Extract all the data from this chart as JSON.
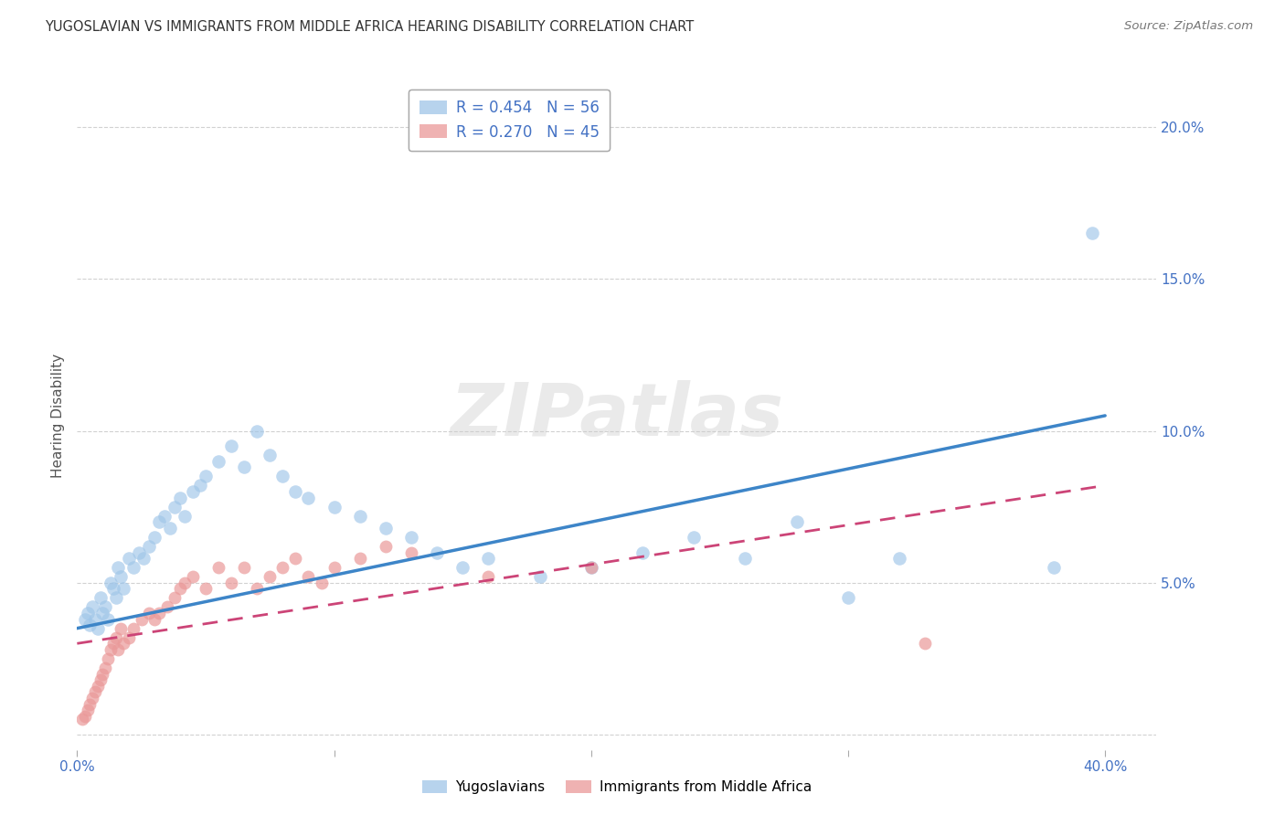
{
  "title": "YUGOSLAVIAN VS IMMIGRANTS FROM MIDDLE AFRICA HEARING DISABILITY CORRELATION CHART",
  "source": "Source: ZipAtlas.com",
  "ylabel": "Hearing Disability",
  "xlim": [
    0.0,
    0.42
  ],
  "ylim": [
    -0.005,
    0.215
  ],
  "xtick_positions": [
    0.0,
    0.1,
    0.2,
    0.3,
    0.4
  ],
  "xticklabels": [
    "0.0%",
    "",
    "",
    "",
    "40.0%"
  ],
  "ytick_positions": [
    0.0,
    0.05,
    0.1,
    0.15,
    0.2
  ],
  "yticklabels_right": [
    "",
    "5.0%",
    "10.0%",
    "15.0%",
    "20.0%"
  ],
  "blue_R": 0.454,
  "blue_N": 56,
  "pink_R": 0.27,
  "pink_N": 45,
  "blue_color": "#9fc5e8",
  "pink_color": "#ea9999",
  "blue_line_color": "#3d85c8",
  "pink_line_color": "#cc4477",
  "watermark_text": "ZIPatlas",
  "legend_label_blue": "Yugoslavians",
  "legend_label_pink": "Immigrants from Middle Africa",
  "blue_line_x": [
    0.0,
    0.4
  ],
  "blue_line_y": [
    0.035,
    0.105
  ],
  "pink_line_x": [
    0.0,
    0.4
  ],
  "pink_line_y": [
    0.03,
    0.082
  ],
  "blue_scatter_x": [
    0.003,
    0.004,
    0.005,
    0.006,
    0.007,
    0.008,
    0.009,
    0.01,
    0.011,
    0.012,
    0.013,
    0.014,
    0.015,
    0.016,
    0.017,
    0.018,
    0.02,
    0.022,
    0.024,
    0.026,
    0.028,
    0.03,
    0.032,
    0.034,
    0.036,
    0.038,
    0.04,
    0.042,
    0.045,
    0.048,
    0.05,
    0.055,
    0.06,
    0.065,
    0.07,
    0.075,
    0.08,
    0.085,
    0.09,
    0.1,
    0.11,
    0.12,
    0.13,
    0.14,
    0.15,
    0.16,
    0.18,
    0.2,
    0.22,
    0.24,
    0.26,
    0.28,
    0.3,
    0.32,
    0.38,
    0.395
  ],
  "blue_scatter_y": [
    0.038,
    0.04,
    0.036,
    0.042,
    0.038,
    0.035,
    0.045,
    0.04,
    0.042,
    0.038,
    0.05,
    0.048,
    0.045,
    0.055,
    0.052,
    0.048,
    0.058,
    0.055,
    0.06,
    0.058,
    0.062,
    0.065,
    0.07,
    0.072,
    0.068,
    0.075,
    0.078,
    0.072,
    0.08,
    0.082,
    0.085,
    0.09,
    0.095,
    0.088,
    0.1,
    0.092,
    0.085,
    0.08,
    0.078,
    0.075,
    0.072,
    0.068,
    0.065,
    0.06,
    0.055,
    0.058,
    0.052,
    0.055,
    0.06,
    0.065,
    0.058,
    0.07,
    0.045,
    0.058,
    0.055,
    0.165
  ],
  "pink_scatter_x": [
    0.002,
    0.003,
    0.004,
    0.005,
    0.006,
    0.007,
    0.008,
    0.009,
    0.01,
    0.011,
    0.012,
    0.013,
    0.014,
    0.015,
    0.016,
    0.017,
    0.018,
    0.02,
    0.022,
    0.025,
    0.028,
    0.03,
    0.032,
    0.035,
    0.038,
    0.04,
    0.042,
    0.045,
    0.05,
    0.055,
    0.06,
    0.065,
    0.07,
    0.075,
    0.08,
    0.085,
    0.09,
    0.095,
    0.1,
    0.11,
    0.12,
    0.13,
    0.16,
    0.2,
    0.33
  ],
  "pink_scatter_y": [
    0.005,
    0.006,
    0.008,
    0.01,
    0.012,
    0.014,
    0.016,
    0.018,
    0.02,
    0.022,
    0.025,
    0.028,
    0.03,
    0.032,
    0.028,
    0.035,
    0.03,
    0.032,
    0.035,
    0.038,
    0.04,
    0.038,
    0.04,
    0.042,
    0.045,
    0.048,
    0.05,
    0.052,
    0.048,
    0.055,
    0.05,
    0.055,
    0.048,
    0.052,
    0.055,
    0.058,
    0.052,
    0.05,
    0.055,
    0.058,
    0.062,
    0.06,
    0.052,
    0.055,
    0.03
  ]
}
